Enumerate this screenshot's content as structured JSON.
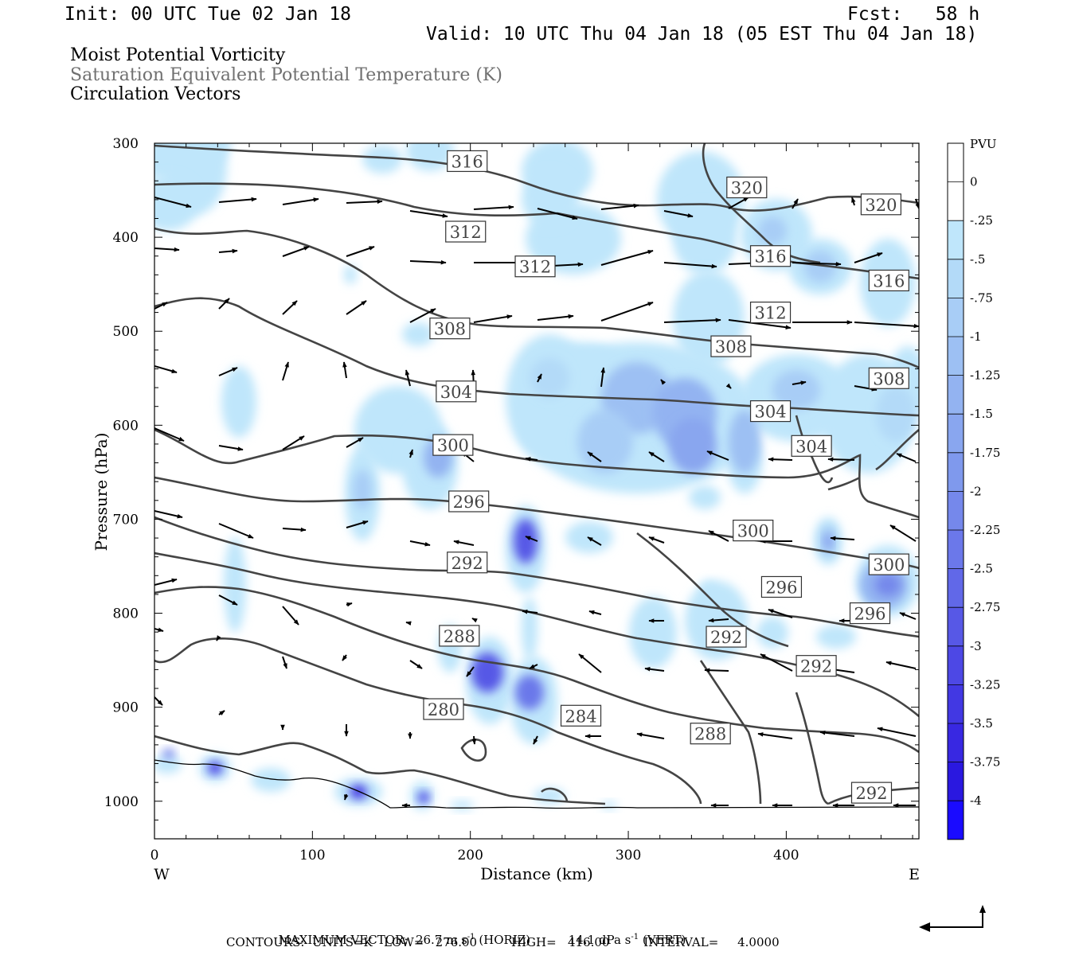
{
  "header": {
    "init": "Init: 00 UTC Tue 02 Jan 18",
    "fcst": "Fcst:   58 h",
    "valid": "Valid: 10 UTC Thu 04 Jan 18 (05 EST Thu 04 Jan 18)"
  },
  "fields": [
    {
      "label": "Moist Potential Vorticity",
      "color": "#000000"
    },
    {
      "label": "Saturation Equivalent Potential Temperature (K)",
      "color": "#707070"
    },
    {
      "label": "Circulation Vectors",
      "color": "#000000"
    }
  ],
  "footer": {
    "max_vector_label": "MAXIMUM VECTOR:",
    "horiz": "26.7 m s",
    "horiz_exp": "-1",
    "horiz_tag": "(HORIZ)",
    "vert": "14.1 dPa s",
    "vert_exp": "-1",
    "vert_tag": "(VERT)",
    "contours": "CONTOURS:  UNITS=K   LOW=   276.00         HIGH=   416.00         INTERVAL=     4.0000"
  },
  "chart_data": {
    "type": "heatmap",
    "xlabel": "Distance (km)",
    "ylabel": "Pressure (hPa)",
    "x_ticks": [
      0,
      100,
      200,
      300,
      400
    ],
    "y_ticks": [
      300,
      400,
      500,
      600,
      700,
      800,
      900,
      1000
    ],
    "xlim": [
      0,
      484
    ],
    "ylim": [
      1040,
      300
    ],
    "x_end_labels": {
      "left": "W",
      "right": "E"
    },
    "colorbar": {
      "unit": "PVU",
      "levels": [
        "0",
        "-.25",
        "-.5",
        "-.75",
        "-1",
        "-1.25",
        "-1.5",
        "-1.75",
        "-2",
        "-2.25",
        "-2.5",
        "-2.75",
        "-3",
        "-3.25",
        "-3.5",
        "-3.75",
        "-4"
      ],
      "colors": [
        "#ffffff",
        "#ffffff",
        "#bfe6fb",
        "#b3daf8",
        "#a8cdf6",
        "#9dc0f3",
        "#93b3f1",
        "#89a6ef",
        "#7f99ed",
        "#7588eb",
        "#6b78ea",
        "#6168e8",
        "#5758e6",
        "#4d48e5",
        "#4238e3",
        "#3828e2",
        "#2a18e0",
        "#1a0bff"
      ]
    },
    "contour_labels": [
      {
        "text": "316",
        "x": 198,
        "p": 319
      },
      {
        "text": "320",
        "x": 375,
        "p": 347
      },
      {
        "text": "320",
        "x": 460,
        "p": 365
      },
      {
        "text": "312",
        "x": 197,
        "p": 394
      },
      {
        "text": "312",
        "x": 241,
        "p": 431
      },
      {
        "text": "316",
        "x": 390,
        "p": 420
      },
      {
        "text": "316",
        "x": 465,
        "p": 446
      },
      {
        "text": "312",
        "x": 390,
        "p": 480
      },
      {
        "text": "308",
        "x": 187,
        "p": 497
      },
      {
        "text": "308",
        "x": 365,
        "p": 516
      },
      {
        "text": "308",
        "x": 465,
        "p": 550
      },
      {
        "text": "304",
        "x": 191,
        "p": 564
      },
      {
        "text": "304",
        "x": 390,
        "p": 585
      },
      {
        "text": "304",
        "x": 416,
        "p": 622
      },
      {
        "text": "300",
        "x": 189,
        "p": 621
      },
      {
        "text": "296",
        "x": 199,
        "p": 681
      },
      {
        "text": "300",
        "x": 379,
        "p": 712
      },
      {
        "text": "300",
        "x": 465,
        "p": 748
      },
      {
        "text": "292",
        "x": 198,
        "p": 746
      },
      {
        "text": "296",
        "x": 397,
        "p": 772
      },
      {
        "text": "296",
        "x": 453,
        "p": 800
      },
      {
        "text": "288",
        "x": 193,
        "p": 824
      },
      {
        "text": "292",
        "x": 362,
        "p": 825
      },
      {
        "text": "292",
        "x": 419,
        "p": 856
      },
      {
        "text": "280",
        "x": 183,
        "p": 902
      },
      {
        "text": "284",
        "x": 270,
        "p": 909
      },
      {
        "text": "288",
        "x": 352,
        "p": 928
      },
      {
        "text": "292",
        "x": 454,
        "p": 991
      }
    ]
  }
}
